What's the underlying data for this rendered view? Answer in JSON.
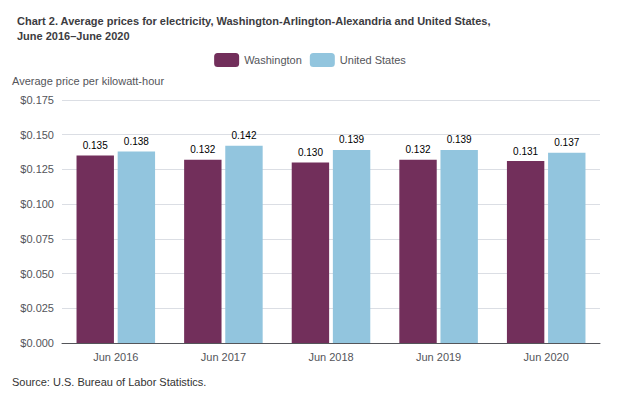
{
  "chart_data": {
    "type": "bar",
    "title": "Chart 2. Average prices for electricity, Washington-Arlington-Alexandria and United States,\nJune 2016–June 2020",
    "y_label": "Average price per kilowatt-hour",
    "annotations": [
      "Source: U.S. Bureau of Labor Statistics."
    ],
    "categories": [
      "Jun 2016",
      "Jun 2017",
      "Jun 2018",
      "Jun 2019",
      "Jun 2020"
    ],
    "series": [
      {
        "name": "Washington",
        "color": "#722F5B",
        "values": [
          0.135,
          0.132,
          0.13,
          0.132,
          0.131
        ],
        "value_labels": [
          "0.135",
          "0.132",
          "0.130",
          "0.132",
          "0.131"
        ]
      },
      {
        "name": "United States",
        "color": "#92C5DE",
        "values": [
          0.138,
          0.142,
          0.139,
          0.139,
          0.137
        ],
        "value_labels": [
          "0.138",
          "0.142",
          "0.139",
          "0.139",
          "0.137"
        ]
      }
    ],
    "ylim": [
      0,
      0.175
    ],
    "yticks": [
      {
        "value": 0.0,
        "label": "$0.000"
      },
      {
        "value": 0.025,
        "label": "$0.025"
      },
      {
        "value": 0.05,
        "label": "$0.050"
      },
      {
        "value": 0.075,
        "label": "$0.075"
      },
      {
        "value": 0.1,
        "label": "$0.100"
      },
      {
        "value": 0.125,
        "label": "$0.125"
      },
      {
        "value": 0.15,
        "label": "$0.150"
      },
      {
        "value": 0.175,
        "label": "$0.175"
      }
    ],
    "data_labels": true,
    "grid": true,
    "legend": "top"
  }
}
